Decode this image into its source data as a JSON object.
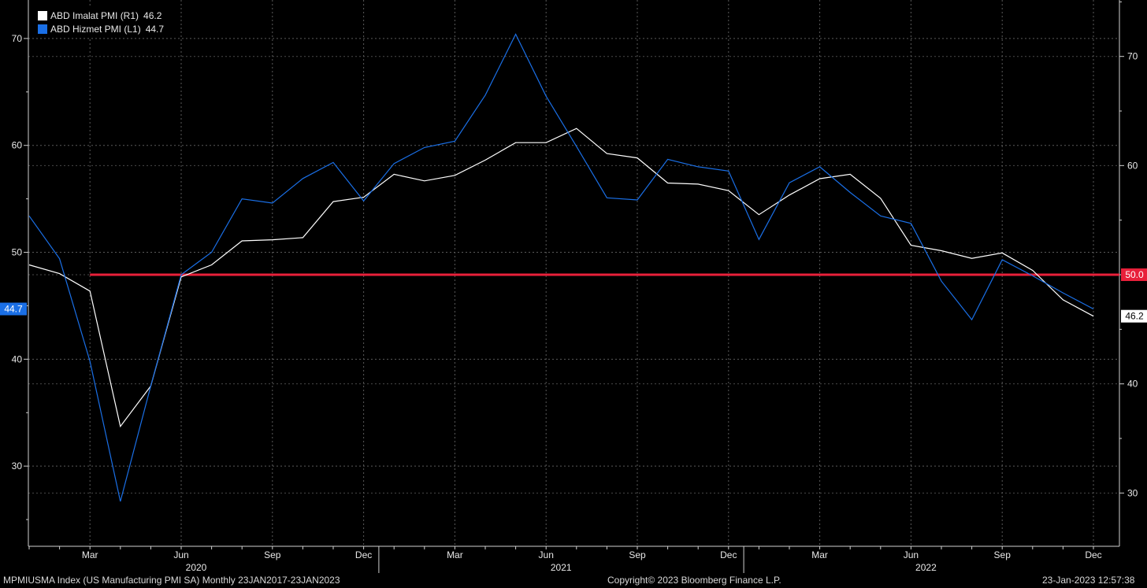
{
  "chart_data": {
    "type": "line",
    "x": [
      "2020-01",
      "2020-02",
      "2020-03",
      "2020-04",
      "2020-05",
      "2020-06",
      "2020-07",
      "2020-08",
      "2020-09",
      "2020-10",
      "2020-11",
      "2020-12",
      "2021-01",
      "2021-02",
      "2021-03",
      "2021-04",
      "2021-05",
      "2021-06",
      "2021-07",
      "2021-08",
      "2021-09",
      "2021-10",
      "2021-11",
      "2021-12",
      "2022-01",
      "2022-02",
      "2022-03",
      "2022-04",
      "2022-05",
      "2022-06",
      "2022-07",
      "2022-08",
      "2022-09",
      "2022-10",
      "2022-11",
      "2022-12"
    ],
    "series": [
      {
        "name": "ABD Imalat PMI (R1)",
        "axis": "right",
        "color": "#ffffff",
        "last_label": "46.2",
        "values": [
          50.9,
          50.1,
          48.5,
          36.1,
          39.8,
          49.8,
          50.9,
          53.1,
          53.2,
          53.4,
          56.7,
          57.1,
          59.2,
          58.6,
          59.1,
          60.5,
          62.1,
          62.1,
          63.4,
          61.1,
          60.7,
          58.4,
          58.3,
          57.7,
          55.5,
          57.3,
          58.8,
          59.2,
          57.0,
          52.7,
          52.2,
          51.5,
          52.0,
          50.4,
          47.7,
          46.2
        ]
      },
      {
        "name": "ABD Hizmet PMI (L1)",
        "axis": "left",
        "color": "#1a6fe6",
        "last_label": "44.7",
        "values": [
          53.4,
          49.4,
          39.8,
          26.7,
          37.5,
          47.9,
          50.0,
          55.0,
          54.6,
          56.9,
          58.4,
          54.8,
          58.3,
          59.8,
          60.4,
          64.7,
          70.4,
          64.6,
          59.9,
          55.1,
          54.9,
          58.7,
          58.0,
          57.6,
          51.2,
          56.5,
          58.0,
          55.6,
          53.4,
          52.7,
          47.3,
          43.7,
          49.3,
          47.8,
          46.2,
          44.7
        ]
      }
    ],
    "y_left": {
      "ticks": [
        "30",
        "40",
        "50",
        "60",
        "70"
      ],
      "range": [
        22.5,
        73.6
      ]
    },
    "y_right": {
      "ticks": [
        "30",
        "40",
        "50",
        "60",
        "70"
      ],
      "range": [
        25.12,
        75.17
      ]
    },
    "reference_line": {
      "value": 50,
      "label": "50.0",
      "color": "#e8203a"
    },
    "x_ticks": [
      {
        "at": "2020-03",
        "label": "Mar"
      },
      {
        "at": "2020-06",
        "label": "Jun"
      },
      {
        "at": "2020-09",
        "label": "Sep"
      },
      {
        "at": "2020-12",
        "label": "Dec"
      },
      {
        "at": "2021-03",
        "label": "Mar"
      },
      {
        "at": "2021-06",
        "label": "Jun"
      },
      {
        "at": "2021-09",
        "label": "Sep"
      },
      {
        "at": "2021-12",
        "label": "Dec"
      },
      {
        "at": "2022-03",
        "label": "Mar"
      },
      {
        "at": "2022-06",
        "label": "Jun"
      },
      {
        "at": "2022-09",
        "label": "Sep"
      },
      {
        "at": "2022-12",
        "label": "Dec"
      }
    ],
    "year_labels": [
      {
        "at": "2020-06",
        "label": "2020"
      },
      {
        "at": "2021-06",
        "label": "2021"
      },
      {
        "at": "2022-06",
        "label": "2022"
      }
    ],
    "grid": true,
    "legend_position": "top-left"
  },
  "footer": {
    "left": "MPMIUSMA Index (US Manufacturing PMI SA)  Monthly 23JAN2017-23JAN2023",
    "center": "Copyright© 2023 Bloomberg Finance L.P.",
    "right": "23-Jan-2023 12:57:38"
  }
}
